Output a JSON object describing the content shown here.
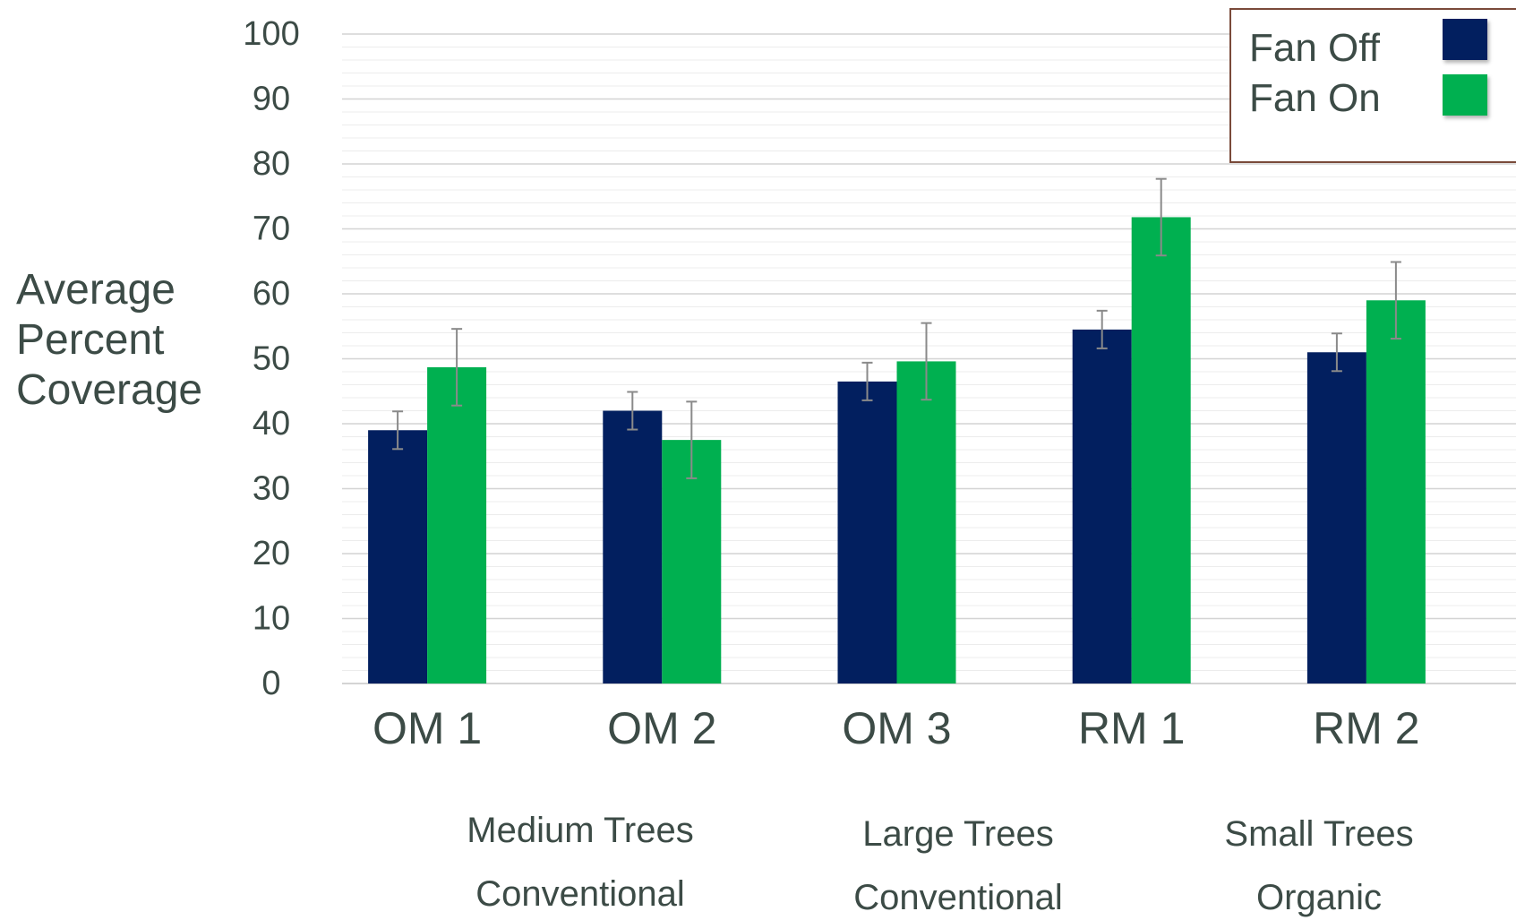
{
  "chart_data": {
    "type": "bar",
    "ylabel": [
      "Average",
      "Percent",
      "Coverage"
    ],
    "ylim": [
      0,
      100
    ],
    "yticks": [
      "0",
      "10",
      "20",
      "30",
      "40",
      "50",
      "60",
      "70",
      "80",
      "90",
      "100"
    ],
    "categories": [
      "OM 1",
      "OM 2",
      "OM 3",
      "RM 1",
      "RM 2"
    ],
    "series": [
      {
        "name": "Fan Off",
        "color": "#021f5f",
        "values": [
          39,
          42,
          46.5,
          54.5,
          51
        ],
        "errors": [
          2.9,
          2.9,
          2.9,
          2.9,
          2.9
        ]
      },
      {
        "name": "Fan On",
        "color": "#00b050",
        "values": [
          48.7,
          37.5,
          49.6,
          71.8,
          59
        ],
        "errors": [
          5.9,
          5.9,
          5.9,
          5.9,
          5.9
        ]
      }
    ],
    "group_labels": [
      {
        "lines": [
          "Medium Trees",
          "Conventional"
        ]
      },
      {
        "lines": [
          "Large Trees",
          "Conventional"
        ]
      },
      {
        "lines": [
          "Small Trees",
          "Organic"
        ]
      }
    ],
    "grid": true,
    "legend_position": "top-right"
  }
}
